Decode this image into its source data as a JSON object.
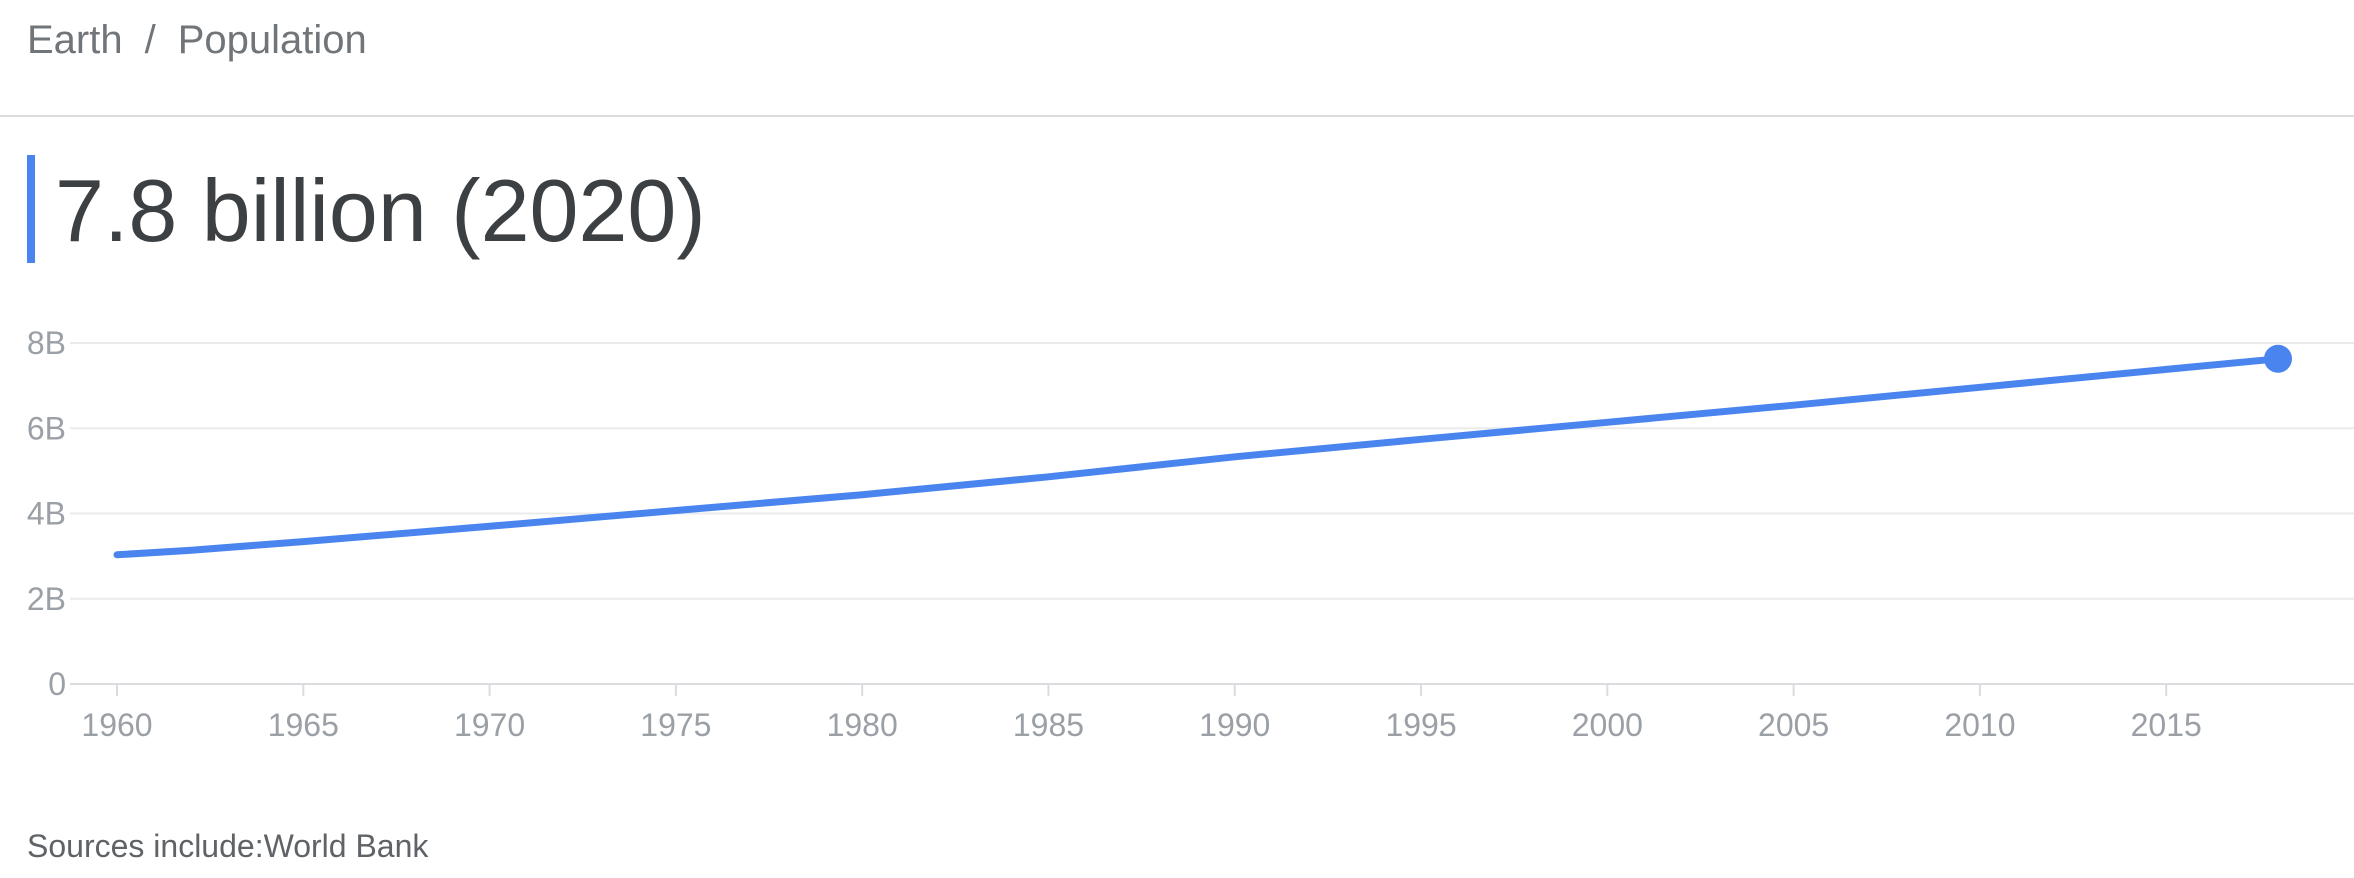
{
  "breadcrumb": {
    "parent": "Earth",
    "separator": "/",
    "current": "Population"
  },
  "headline": "7.8 billion (2020)",
  "accent_color": "#4a84ee",
  "source": {
    "label": "Sources include:",
    "value": "World Bank"
  },
  "chart_data": {
    "type": "line",
    "title": "",
    "xlabel": "",
    "ylabel": "",
    "xlim": [
      1960,
      2018
    ],
    "ylim": [
      0,
      8
    ],
    "x_ticks": [
      "1960",
      "1965",
      "1970",
      "1975",
      "1980",
      "1985",
      "1990",
      "1995",
      "2000",
      "2005",
      "2010",
      "2015"
    ],
    "y_ticks": [
      "0",
      "2B",
      "4B",
      "6B",
      "8B"
    ],
    "grid": true,
    "series": [
      {
        "color": "#4a84ee",
        "x": [
          1960,
          1962,
          1965,
          1970,
          1975,
          1980,
          1985,
          1990,
          1995,
          2000,
          2005,
          2010,
          2015,
          2018
        ],
        "y": [
          3.03,
          3.14,
          3.34,
          3.7,
          4.07,
          4.44,
          4.86,
          5.33,
          5.74,
          6.14,
          6.54,
          6.96,
          7.38,
          7.63
        ]
      }
    ],
    "highlight_point": {
      "x": 2018,
      "y": 7.63
    }
  }
}
